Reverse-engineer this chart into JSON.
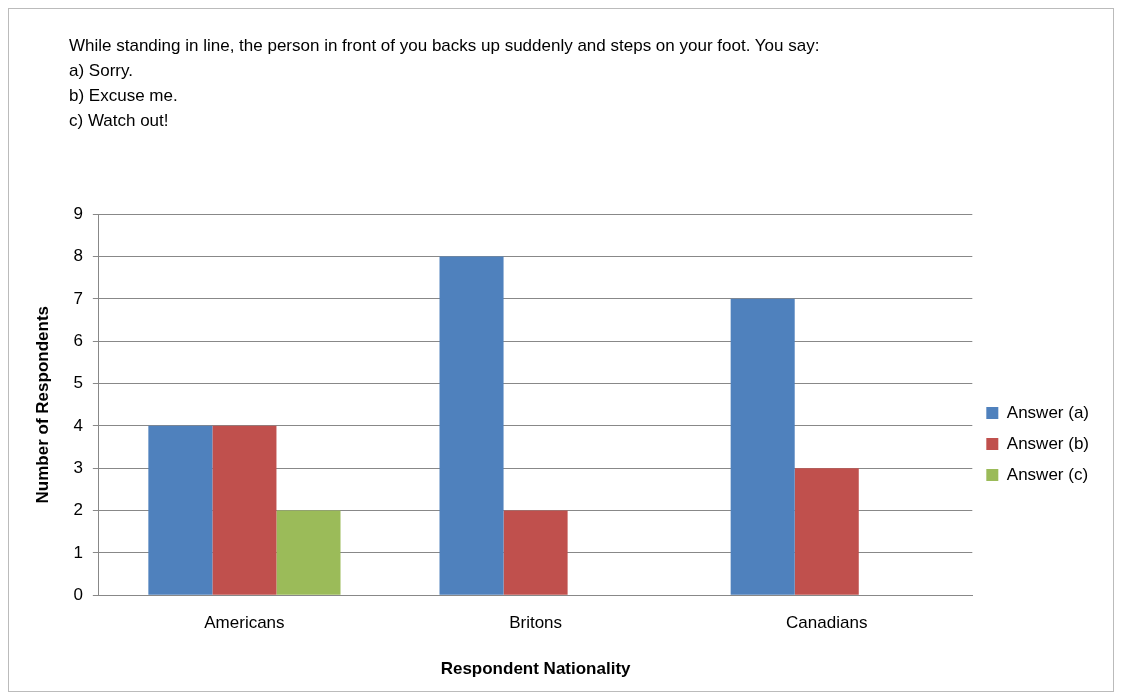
{
  "chart_data": {
    "type": "bar",
    "title": "While standing in line, the person in front of you backs up suddenly and steps on your foot.  You say:",
    "annotations": [
      "a) Sorry.",
      "b) Excuse me.",
      "c) Watch out!"
    ],
    "categories": [
      "Americans",
      "Britons",
      "Canadians"
    ],
    "series": [
      {
        "name": "Answer (a)",
        "color": "#4f81bd",
        "values": [
          4,
          8,
          7
        ]
      },
      {
        "name": "Answer (b)",
        "color": "#c0504d",
        "values": [
          4,
          2,
          3
        ]
      },
      {
        "name": "Answer (c)",
        "color": "#9bbb59",
        "values": [
          2,
          0,
          0
        ]
      }
    ],
    "xlabel": "Respondent Nationality",
    "ylabel": "Number of Respondents",
    "ylim": [
      0,
      9
    ],
    "yticks": [
      0,
      1,
      2,
      3,
      4,
      5,
      6,
      7,
      8,
      9
    ],
    "grid": "y",
    "legend": "right"
  }
}
